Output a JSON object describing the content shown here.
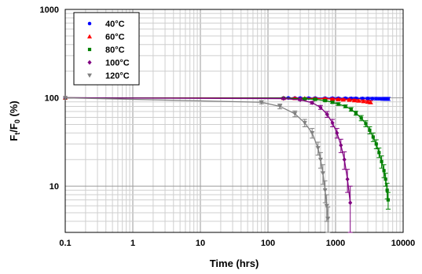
{
  "chart_data": {
    "type": "scatter",
    "title": "",
    "xlabel": "Time (hrs)",
    "ylabel": {
      "main": "F",
      "sub1": "t",
      "mid": "/F",
      "sub2": "0",
      "tail": " (%)"
    },
    "xscale": "log",
    "yscale": "log",
    "xlim": [
      0.1,
      10000
    ],
    "ylim": [
      3,
      1000
    ],
    "grid": true,
    "legend_position": "top-left",
    "x_ticks": [
      0.1,
      1,
      10,
      100,
      1000,
      10000
    ],
    "x_tick_labels": [
      "0.1",
      "1",
      "10",
      "100",
      "1000",
      "10000"
    ],
    "y_ticks": [
      10,
      100,
      1000
    ],
    "y_tick_labels": [
      "10",
      "100",
      "1000"
    ],
    "series": [
      {
        "name": "40°C",
        "color": "#0000ff",
        "marker": "circle",
        "x": [
          0.1,
          170,
          200,
          250,
          300,
          400,
          500,
          700,
          900,
          1100,
          1400,
          1700,
          2000,
          2500,
          3000,
          3500,
          4000,
          4500,
          5000,
          5500,
          6000
        ],
        "y": [
          100,
          99.5,
          99.6,
          99.4,
          99.5,
          99.2,
          99.3,
          99.0,
          99.1,
          98.8,
          98.9,
          98.6,
          98.7,
          98.4,
          98.3,
          98.0,
          97.8,
          97.6,
          97.4,
          97.3,
          97.2
        ],
        "err": [
          0,
          1.2,
          1.2,
          1.5,
          1.5,
          1.8,
          1.8,
          2,
          2,
          2.2,
          2.2,
          2.5,
          2.5,
          2.8,
          3,
          3.2,
          3.5,
          3.5,
          3.8,
          4,
          4
        ]
      },
      {
        "name": "60°C",
        "color": "#ff0000",
        "marker": "triangle",
        "x": [
          0.1,
          170,
          250,
          350,
          500,
          700,
          900,
          1100,
          1300,
          1600,
          1900,
          2200,
          2600,
          3000,
          3300
        ],
        "y": [
          100,
          99.3,
          99.0,
          98.7,
          98.2,
          97.7,
          97.0,
          96.3,
          95.5,
          94.6,
          93.6,
          92.5,
          91.3,
          90.0,
          89.0
        ],
        "err": [
          0,
          1.2,
          1.3,
          1.5,
          1.7,
          2,
          2,
          2.2,
          2.3,
          2.5,
          2.7,
          3,
          3,
          3.2,
          3.5
        ]
      },
      {
        "name": "80°C",
        "color": "#008000",
        "marker": "square",
        "x": [
          0.1,
          170,
          350,
          500,
          700,
          900,
          1100,
          1400,
          1700,
          2000,
          2400,
          2800,
          3200,
          3600,
          4000,
          4400,
          4800,
          5200,
          5500,
          5800,
          6000
        ],
        "y": [
          100,
          99,
          97.5,
          96,
          93,
          89,
          85,
          80,
          74,
          67,
          59,
          51,
          43,
          36,
          30,
          24,
          19,
          15,
          12,
          9,
          7
        ],
        "err": [
          0,
          1,
          1.5,
          2,
          2,
          2.5,
          3,
          3,
          3.5,
          3.5,
          4,
          4,
          4,
          4,
          3.5,
          3,
          3,
          2.5,
          2,
          1.8,
          1.5
        ]
      },
      {
        "name": "100°C",
        "color": "#800080",
        "marker": "diamond",
        "x": [
          0.1,
          170,
          300,
          450,
          600,
          750,
          900,
          1050,
          1200,
          1350,
          1500,
          1650
        ],
        "y": [
          100,
          98,
          95,
          88,
          78,
          65,
          52,
          40,
          29,
          20,
          12,
          6.5
        ],
        "err": [
          0,
          1.5,
          2,
          3,
          4,
          5,
          5,
          5,
          5,
          4.5,
          3.5,
          3.5
        ]
      },
      {
        "name": "120°C",
        "color": "#808080",
        "marker": "triangle-down",
        "x": [
          0.1,
          80,
          150,
          250,
          350,
          450,
          550,
          600,
          650,
          700,
          740,
          770
        ],
        "y": [
          100,
          89,
          80,
          66,
          52,
          40,
          27,
          20,
          14,
          9,
          6,
          4.3
        ],
        "err": [
          0,
          3.5,
          5,
          5,
          5,
          5,
          4.5,
          4,
          3.5,
          2.5,
          2,
          1.5
        ]
      }
    ]
  }
}
